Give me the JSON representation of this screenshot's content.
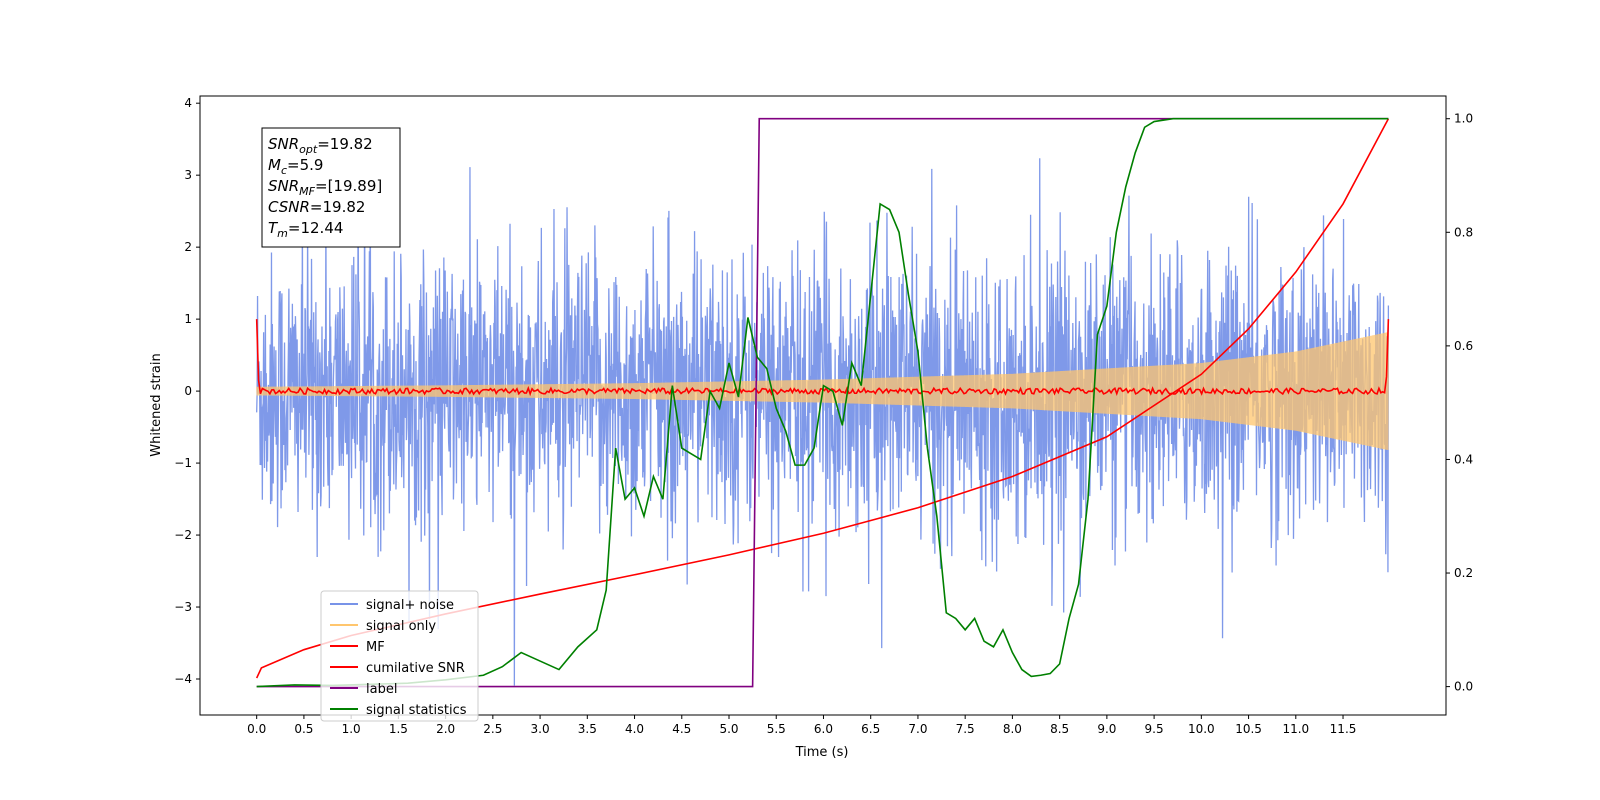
{
  "chart_data": {
    "type": "line",
    "xlabel": "Time (s)",
    "ylabel": "Whitened strain",
    "xlim": [
      -0.6,
      12.59
    ],
    "ylim": [
      -4.5,
      4.1
    ],
    "y2lim": [
      -0.05,
      1.04
    ],
    "x_ticks": [
      0.0,
      0.5,
      1.0,
      1.5,
      2.0,
      2.5,
      3.0,
      3.5,
      4.0,
      4.5,
      5.0,
      5.5,
      6.0,
      6.5,
      7.0,
      7.5,
      8.0,
      8.5,
      9.0,
      9.5,
      10.0,
      10.5,
      11.0,
      11.5
    ],
    "x_tick_labels": [
      "0.0",
      "0.5",
      "1.0",
      "1.5",
      "2.0",
      "2.5",
      "3.0",
      "3.5",
      "4.0",
      "4.5",
      "5.0",
      "5.5",
      "6.0",
      "6.5",
      "7.0",
      "7.5",
      "8.0",
      "8.5",
      "9.0",
      "9.5",
      "10.0",
      "10.5",
      "11.0",
      "11.5"
    ],
    "y_ticks": [
      -4,
      -3,
      -2,
      -1,
      0,
      1,
      2,
      3,
      4
    ],
    "y_tick_labels": [
      "−4",
      "−3",
      "−2",
      "−1",
      "0",
      "1",
      "2",
      "3",
      "4"
    ],
    "y2_ticks": [
      0.0,
      0.2,
      0.4,
      0.6,
      0.8,
      1.0
    ],
    "y2_tick_labels": [
      "0.0",
      "0.2",
      "0.4",
      "0.6",
      "0.8",
      "1.0"
    ],
    "grid": false,
    "legend_position": "lower-left",
    "info_box": {
      "snr_opt": {
        "base": "SNR",
        "sub": "opt",
        "value": "=19.82"
      },
      "mc": {
        "base": "M",
        "sub": "c",
        "value": "=5.9"
      },
      "snr_mf": {
        "base": "SNR",
        "sub": "MF",
        "value": "=[19.89]"
      },
      "csnr": {
        "base": "CSNR",
        "sub": "",
        "value": "=19.82"
      },
      "tm": {
        "base": "T",
        "sub": "m",
        "value": "=12.44"
      }
    },
    "series": [
      {
        "name": "signal+ noise",
        "color": "#7893e8",
        "axis": "left",
        "description_values": {
          "t_start": 0.0,
          "t_end": 11.98,
          "std": 0.95,
          "min": -4.1,
          "max": 3.7
        }
      },
      {
        "name": "signal only",
        "color": "#ffc66e",
        "axis": "left",
        "envelope_points": {
          "t": [
            0.0,
            2.0,
            4.0,
            6.0,
            8.0,
            10.0,
            11.0,
            11.98
          ],
          "amp": [
            0.06,
            0.08,
            0.11,
            0.16,
            0.24,
            0.39,
            0.55,
            0.82
          ]
        }
      },
      {
        "name": "MF",
        "color": "#ff0000",
        "axis": "left",
        "description_values": {
          "start_value": 1.0,
          "baseline": 0.0,
          "noise": 0.04,
          "end_value": 1.0
        }
      },
      {
        "name": "cumilative SNR",
        "color": "#ff0000",
        "axis": "right",
        "points": {
          "t": [
            0.0,
            0.05,
            0.5,
            1.0,
            2.0,
            3.0,
            4.0,
            5.0,
            6.0,
            7.0,
            8.0,
            9.0,
            10.0,
            10.5,
            11.0,
            11.5,
            11.98
          ],
          "y": [
            0.015,
            0.033,
            0.065,
            0.09,
            0.128,
            0.163,
            0.197,
            0.232,
            0.27,
            0.315,
            0.37,
            0.44,
            0.55,
            0.63,
            0.73,
            0.85,
            1.0
          ]
        }
      },
      {
        "name": "label",
        "color": "#800080",
        "axis": "right",
        "points": {
          "t": [
            0.0,
            5.25,
            5.32,
            11.98
          ],
          "y": [
            0.0,
            0.0,
            1.0,
            1.0
          ]
        }
      },
      {
        "name": "signal statistics",
        "color": "#008000",
        "axis": "right",
        "points": {
          "t": [
            0.0,
            0.4,
            0.8,
            1.2,
            1.6,
            2.0,
            2.4,
            2.6,
            2.8,
            3.0,
            3.2,
            3.4,
            3.6,
            3.7,
            3.8,
            3.9,
            4.0,
            4.1,
            4.2,
            4.3,
            4.4,
            4.5,
            4.6,
            4.7,
            4.8,
            4.9,
            5.0,
            5.1,
            5.2,
            5.3,
            5.4,
            5.5,
            5.6,
            5.7,
            5.8,
            5.9,
            6.0,
            6.1,
            6.2,
            6.3,
            6.4,
            6.5,
            6.6,
            6.7,
            6.8,
            6.9,
            7.0,
            7.1,
            7.2,
            7.3,
            7.4,
            7.5,
            7.6,
            7.7,
            7.8,
            7.9,
            8.0,
            8.1,
            8.2,
            8.3,
            8.4,
            8.5,
            8.6,
            8.7,
            8.8,
            8.9,
            9.0,
            9.1,
            9.2,
            9.3,
            9.4,
            9.5,
            9.7,
            10.0,
            11.0,
            11.98
          ],
          "y": [
            0.0,
            0.003,
            0.002,
            0.004,
            0.006,
            0.012,
            0.02,
            0.035,
            0.06,
            0.045,
            0.03,
            0.07,
            0.1,
            0.17,
            0.42,
            0.33,
            0.35,
            0.3,
            0.37,
            0.33,
            0.53,
            0.42,
            0.41,
            0.4,
            0.52,
            0.49,
            0.57,
            0.51,
            0.65,
            0.58,
            0.56,
            0.49,
            0.45,
            0.39,
            0.39,
            0.42,
            0.53,
            0.52,
            0.46,
            0.57,
            0.53,
            0.69,
            0.85,
            0.84,
            0.8,
            0.69,
            0.59,
            0.42,
            0.3,
            0.13,
            0.12,
            0.1,
            0.12,
            0.08,
            0.07,
            0.1,
            0.06,
            0.03,
            0.018,
            0.02,
            0.023,
            0.04,
            0.12,
            0.18,
            0.33,
            0.62,
            0.67,
            0.8,
            0.88,
            0.94,
            0.985,
            0.995,
            1.0,
            1.0,
            1.0,
            1.0
          ]
        }
      }
    ]
  }
}
